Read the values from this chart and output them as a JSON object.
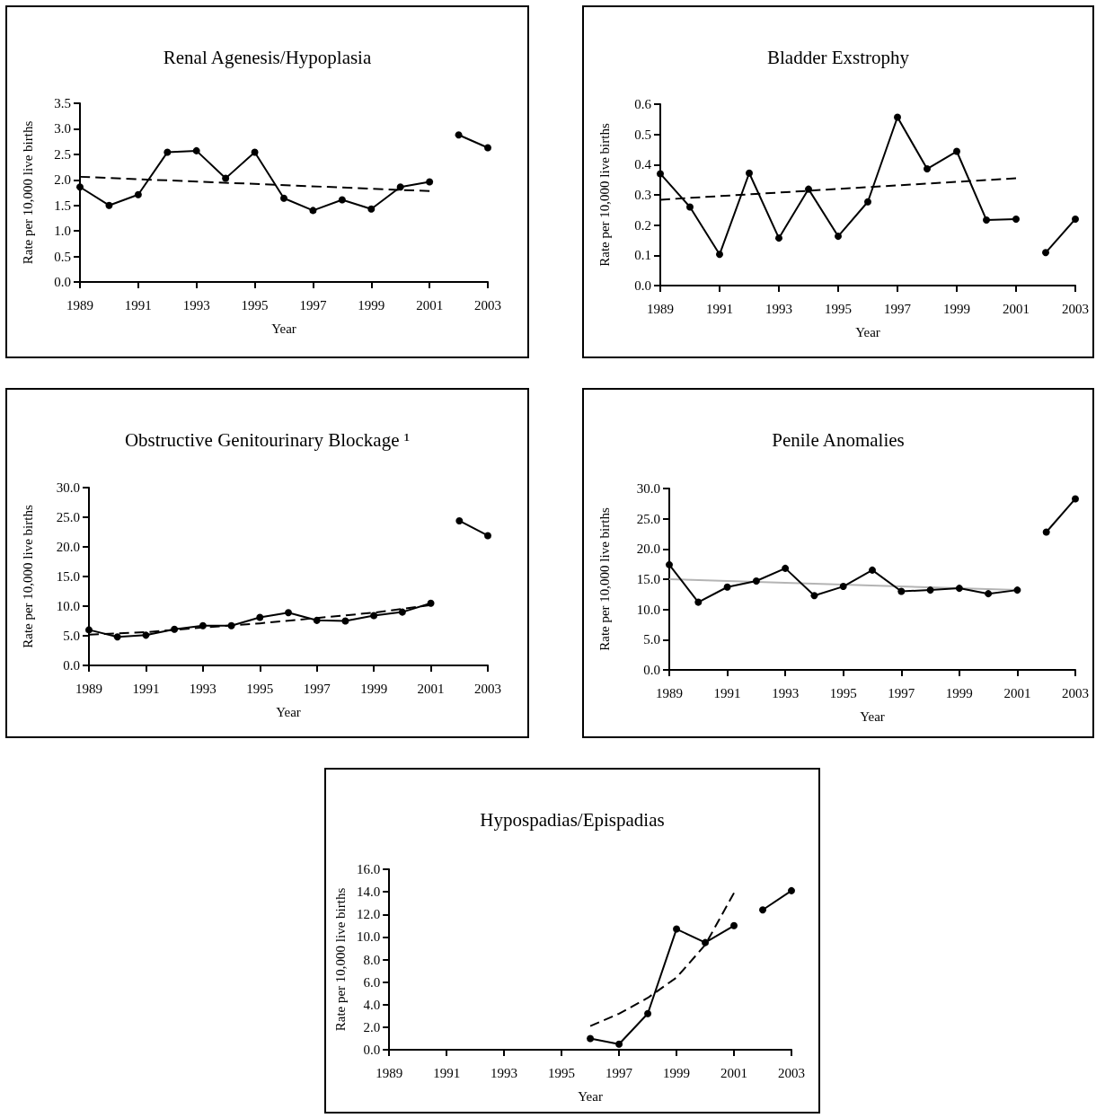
{
  "chart_data": [
    {
      "type": "line",
      "title": "Renal Agenesis/Hypoplasia",
      "xlabel": "Year",
      "ylabel": "Rate per 10,000 live births",
      "xlim": [
        1989,
        2003
      ],
      "xticks": [
        1989,
        1991,
        1993,
        1995,
        1997,
        1999,
        2001,
        2003
      ],
      "ylim": [
        0,
        3.5
      ],
      "yticks": [
        {
          "value": 0,
          "label": "0.0"
        },
        0.5,
        {
          "value": 1,
          "label": "1.0"
        },
        1.5,
        {
          "value": 2,
          "label": "2.0"
        },
        2.5,
        {
          "value": 3,
          "label": "3.0"
        },
        3.5
      ],
      "marker": "circle",
      "series": [
        {
          "color": "#000000",
          "x": [
            1989,
            1990,
            1991,
            1992,
            1993,
            1994,
            1995,
            1996,
            1997,
            1998,
            1999,
            2000,
            2001
          ],
          "values": [
            1.86,
            1.5,
            1.71,
            2.54,
            2.57,
            2.03,
            2.54,
            1.64,
            1.4,
            1.61,
            1.43,
            1.86,
            1.96
          ]
        },
        {
          "color": "#000000",
          "x": [
            2002,
            2003
          ],
          "values": [
            2.88,
            2.63
          ]
        },
        {
          "color": "#000000",
          "line_style": "dashed",
          "marker": "none",
          "x": [
            1989,
            2001
          ],
          "values": [
            2.06,
            1.78
          ]
        }
      ]
    },
    {
      "type": "line",
      "title": "Bladder Exstrophy",
      "xlabel": "Year",
      "ylabel": "Rate per 10,000 live births",
      "xlim": [
        1989,
        2003
      ],
      "xticks": [
        1989,
        1991,
        1993,
        1995,
        1997,
        1999,
        2001,
        2003
      ],
      "ylim": [
        0,
        0.6
      ],
      "yticks": [
        {
          "value": 0,
          "label": "0.0"
        },
        0.1,
        0.2,
        0.3,
        0.4,
        0.5,
        0.6
      ],
      "marker": "circle",
      "series": [
        {
          "color": "#000000",
          "x": [
            1989,
            1990,
            1991,
            1992,
            1993,
            1994,
            1995,
            1996,
            1997,
            1998,
            1999,
            2000,
            2001
          ],
          "values": [
            0.37,
            0.26,
            0.103,
            0.372,
            0.157,
            0.319,
            0.163,
            0.277,
            0.557,
            0.386,
            0.444,
            0.217,
            0.22
          ]
        },
        {
          "color": "#000000",
          "x": [
            2002,
            2003
          ],
          "values": [
            0.109,
            0.22
          ]
        },
        {
          "color": "#000000",
          "line_style": "dashed",
          "marker": "none",
          "x": [
            1989,
            2001
          ],
          "values": [
            0.284,
            0.355
          ]
        }
      ]
    },
    {
      "type": "line",
      "title": "Obstructive Genitourinary Blockage ¹",
      "xlabel": "Year",
      "ylabel": "Rate per 10,000 live births",
      "xlim": [
        1989,
        2003
      ],
      "xticks": [
        1989,
        1991,
        1993,
        1995,
        1997,
        1999,
        2001,
        2003
      ],
      "ylim": [
        0,
        30
      ],
      "yticks": [
        {
          "value": 0,
          "label": "0.0"
        },
        {
          "value": 5,
          "label": "5.0"
        },
        {
          "value": 10,
          "label": "10.0"
        },
        {
          "value": 15,
          "label": "15.0"
        },
        {
          "value": 20,
          "label": "20.0"
        },
        {
          "value": 25,
          "label": "25.0"
        },
        {
          "value": 30,
          "label": "30.0"
        }
      ],
      "marker": "circle",
      "series": [
        {
          "color": "#000000",
          "x": [
            1989,
            1990,
            1991,
            1992,
            1993,
            1994,
            1995,
            1996,
            1997,
            1998,
            1999,
            2000,
            2001
          ],
          "values": [
            6.0,
            4.8,
            5.1,
            6.1,
            6.7,
            6.7,
            8.1,
            8.9,
            7.6,
            7.5,
            8.4,
            9.0,
            10.5
          ]
        },
        {
          "color": "#000000",
          "x": [
            2002,
            2003
          ],
          "values": [
            24.4,
            21.9
          ]
        },
        {
          "color": "#000000",
          "line_style": "dashed",
          "marker": "none",
          "x": [
            1989,
            1991,
            1993,
            1995,
            1997,
            1999,
            2001
          ],
          "values": [
            5.2,
            5.6,
            6.4,
            7.1,
            8.0,
            8.9,
            10.2
          ]
        }
      ]
    },
    {
      "type": "line",
      "title": "Penile Anomalies",
      "xlabel": "Year",
      "ylabel": "Rate per 10,000 live births",
      "xlim": [
        1989,
        2003
      ],
      "xticks": [
        1989,
        1991,
        1993,
        1995,
        1997,
        1999,
        2001,
        2003
      ],
      "ylim": [
        0,
        30
      ],
      "yticks": [
        {
          "value": 0,
          "label": "0.0"
        },
        {
          "value": 5,
          "label": "5.0"
        },
        {
          "value": 10,
          "label": "10.0"
        },
        {
          "value": 15,
          "label": "15.0"
        },
        {
          "value": 20,
          "label": "20.0"
        },
        {
          "value": 25,
          "label": "25.0"
        },
        {
          "value": 30,
          "label": "30.0"
        }
      ],
      "marker": "circle",
      "series": [
        {
          "color": "#000000",
          "x": [
            1989,
            1990,
            1991,
            1992,
            1993,
            1994,
            1995,
            1996,
            1997,
            1998,
            1999,
            2000,
            2001
          ],
          "values": [
            17.4,
            11.2,
            13.7,
            14.7,
            16.8,
            12.3,
            13.8,
            16.5,
            13.0,
            13.2,
            13.5,
            12.6,
            13.2
          ]
        },
        {
          "color": "#000000",
          "x": [
            2002,
            2003
          ],
          "values": [
            22.8,
            28.3
          ]
        },
        {
          "color": "#b4b4b4",
          "line_style": "solid",
          "marker": "none",
          "x": [
            1989,
            2001
          ],
          "values": [
            15.0,
            13.2
          ]
        }
      ]
    },
    {
      "type": "line",
      "title": "Hypospadias/Epispadias",
      "xlabel": "Year",
      "ylabel": "Rate per 10,000 live births",
      "xlim": [
        1989,
        2003
      ],
      "xticks": [
        1989,
        1991,
        1993,
        1995,
        1997,
        1999,
        2001,
        2003
      ],
      "ylim": [
        0,
        16
      ],
      "yticks": [
        {
          "value": 0,
          "label": "0.0"
        },
        {
          "value": 2,
          "label": "2.0"
        },
        {
          "value": 4,
          "label": "4.0"
        },
        {
          "value": 6,
          "label": "6.0"
        },
        {
          "value": 8,
          "label": "8.0"
        },
        {
          "value": 10,
          "label": "10.0"
        },
        {
          "value": 12,
          "label": "12.0"
        },
        {
          "value": 14,
          "label": "14.0"
        },
        {
          "value": 16,
          "label": "16.0"
        }
      ],
      "marker": "circle",
      "series": [
        {
          "color": "#000000",
          "x": [
            1996,
            1997,
            1998,
            1999,
            2000,
            2001
          ],
          "values": [
            1.0,
            0.5,
            3.2,
            10.7,
            9.5,
            11.0
          ]
        },
        {
          "color": "#000000",
          "x": [
            2002,
            2003
          ],
          "values": [
            12.4,
            14.1
          ]
        },
        {
          "color": "#000000",
          "line_style": "dashed",
          "marker": "none",
          "x": [
            1996,
            1997,
            1998,
            1999,
            2000,
            2001
          ],
          "values": [
            2.1,
            3.2,
            4.6,
            6.4,
            9.3,
            13.9
          ]
        }
      ]
    }
  ]
}
